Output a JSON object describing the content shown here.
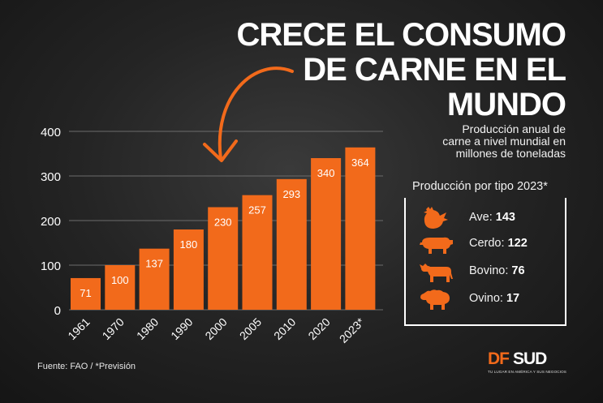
{
  "headline": [
    "CRECE EL CONSUMO",
    "DE CARNE EN EL",
    "MUNDO"
  ],
  "subtitle": [
    "Producción anual de",
    "carne a nivel mundial en",
    "millones de toneladas"
  ],
  "type_breakdown": {
    "title": "Producción por tipo 2023*",
    "items": [
      {
        "label": "Ave:",
        "value": "143",
        "icon": "chicken-icon"
      },
      {
        "label": "Cerdo:",
        "value": "122",
        "icon": "pig-icon"
      },
      {
        "label": "Bovino:",
        "value": "76",
        "icon": "cow-icon"
      },
      {
        "label": "Ovino:",
        "value": "17",
        "icon": "sheep-icon"
      }
    ]
  },
  "source": "Fuente:  FAO / *Previsión",
  "logo": {
    "df": "DF",
    "sud": "SUD",
    "tagline": "TU LUGAR EN AMÉRICA Y SUS NEGOCIOS"
  },
  "colors": {
    "accent": "#f26a1b",
    "text": "#ffffff",
    "background": "#222222"
  },
  "chart_data": {
    "type": "bar",
    "categories": [
      "1961",
      "1970",
      "1980",
      "1990",
      "2000",
      "2005",
      "2010",
      "2020",
      "2023*"
    ],
    "values": [
      71,
      100,
      137,
      180,
      230,
      257,
      293,
      340,
      364
    ],
    "ylim": [
      0,
      400
    ],
    "yticks": [
      0,
      100,
      200,
      300,
      400
    ],
    "grid": true,
    "data_labels": true,
    "bar_color": "#f26a1b",
    "annotation": "curved arrow pointing down"
  }
}
